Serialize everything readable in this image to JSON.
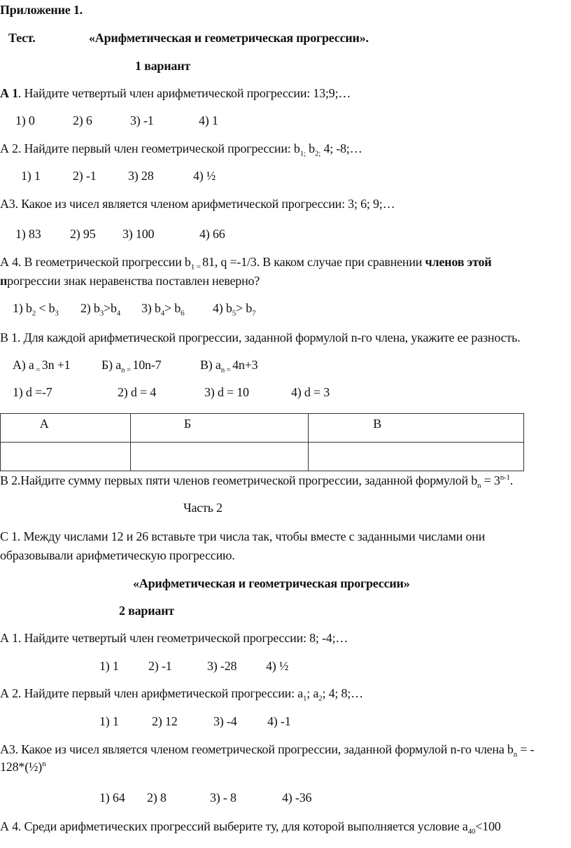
{
  "header": {
    "appendix": "Приложение 1.",
    "test_label": "Тест.",
    "title": "«Арифметическая и геометрическая прогрессии».",
    "variant": "1 вариант"
  },
  "v1": {
    "a1": [
      {
        "t": "А 1",
        "s": "b"
      },
      {
        "t": ". Найдите четвертый член арифметической прогрессии: 13;9;…"
      }
    ],
    "a1_options": [
      "1) 0",
      "2) 6",
      "3) -1",
      "4) 1"
    ],
    "a2": [
      {
        "t": "А 2. Найдите первый член геометрической прогрессии: b"
      },
      {
        "t": "1;",
        "s": "sub"
      },
      {
        "t": " b"
      },
      {
        "t": "2;",
        "s": "sub"
      },
      {
        "t": " 4; -8;…"
      }
    ],
    "a2_options": [
      "1) 1",
      "2)  -1",
      "3) 28",
      "4) ½"
    ],
    "a3": [
      {
        "t": "А3. Какое из чисел является членом арифметической прогрессии: 3; 6; 9;…"
      }
    ],
    "a3_options": [
      "1) 83",
      "2) 95",
      "3)  100",
      "4) 66"
    ],
    "a4_line1": [
      {
        "t": "А 4. В геометрической прогрессии b"
      },
      {
        "t": "1 = ",
        "s": "sub"
      },
      {
        "t": "81, q =-1/3. В каком случае при сравнении "
      },
      {
        "t": "членов этой",
        "s": "b"
      }
    ],
    "a4_line2": [
      {
        "t": "п",
        "s": "b"
      },
      {
        "t": "рогрессии знак неравенства поставлен неверно?"
      }
    ],
    "a4_options": [
      [
        {
          "t": "1) b"
        },
        {
          "t": "2",
          "s": "sub"
        },
        {
          "t": " < b"
        },
        {
          "t": "3",
          "s": "sub"
        }
      ],
      [
        {
          "t": "2) b"
        },
        {
          "t": "3",
          "s": "sub"
        },
        {
          "t": ">b"
        },
        {
          "t": "4",
          "s": "sub"
        }
      ],
      [
        {
          "t": "3) b"
        },
        {
          "t": "4",
          "s": "sub"
        },
        {
          "t": "> b"
        },
        {
          "t": "6",
          "s": "sub"
        }
      ],
      [
        {
          "t": "4) b"
        },
        {
          "t": "5",
          "s": "sub"
        },
        {
          "t": "> b"
        },
        {
          "t": "7",
          "s": "sub"
        }
      ]
    ],
    "b1": [
      {
        "t": "В 1. Для каждой арифметической прогрессии, заданной формулой n-го члена, укажите ее разность."
      }
    ],
    "b1_formulas": [
      [
        {
          "t": "А)  a"
        },
        {
          "t": " = ",
          "s": "sub"
        },
        {
          "t": "3n +1"
        }
      ],
      [
        {
          "t": "Б)   a"
        },
        {
          "t": "n = ",
          "s": "sub"
        },
        {
          "t": "10n-7"
        }
      ],
      [
        {
          "t": "В)  a"
        },
        {
          "t": "n = ",
          "s": "sub"
        },
        {
          "t": "4n+3"
        }
      ]
    ],
    "b1_options": [
      "1)  d =-7",
      "2)  d = 4",
      "3) d = 10",
      "4) d = 3"
    ],
    "answer_table": {
      "headers": [
        "А",
        "Б",
        "В"
      ],
      "values": [
        "",
        "",
        ""
      ]
    },
    "b2": [
      {
        "t": "В 2.Найдите сумму первых пяти членов геометрической прогрессии, заданной формулой b"
      },
      {
        "t": "n",
        "s": "sub"
      },
      {
        "t": " = 3"
      },
      {
        "t": "n-1",
        "s": "sup"
      },
      {
        "t": "."
      }
    ],
    "part2": "Часть 2",
    "c1_line1": "С 1. Между числами 12 и 26 вставьте три числа так, чтобы вместе с заданными числами они",
    "c1_line2": "образовывали арифметическую прогрессию."
  },
  "v2_header": {
    "title": "«Арифметическая и геометрическая прогрессии»",
    "variant": "2 вариант"
  },
  "v2": {
    "a1": [
      {
        "t": "А 1. Найдите четвертый член геометрической прогрессии: 8; -4;…"
      }
    ],
    "a1_options": [
      "1) 1",
      "2)  -1",
      "3)    -28",
      "4)  ½"
    ],
    "a2": [
      {
        "t": "А 2. Найдите первый член арифметической прогрессии: a"
      },
      {
        "t": "1",
        "s": "sub"
      },
      {
        "t": "; a"
      },
      {
        "t": "2",
        "s": "sub"
      },
      {
        "t": "; 4; 8;…"
      }
    ],
    "a2_options": [
      "1) 1",
      "2) 12",
      "3) -4",
      "4) -1"
    ],
    "a3_line1": [
      {
        "t": "А3. Какое из чисел является членом геометрической прогрессии, заданной формулой n-го члена b"
      },
      {
        "t": "n",
        "s": "sub"
      },
      {
        "t": " = -"
      }
    ],
    "a3_line2": [
      {
        "t": "128*(½)"
      },
      {
        "t": "n",
        "s": "sup"
      }
    ],
    "a3_options": [
      "1) 64",
      "2) 8",
      "3) - 8",
      "4) -36"
    ],
    "a4": [
      {
        "t": "А 4. Среди арифметических прогрессий выберите ту, для которой выполняется условие a"
      },
      {
        "t": "40",
        "s": "sub"
      },
      {
        "t": "<100"
      }
    ]
  }
}
